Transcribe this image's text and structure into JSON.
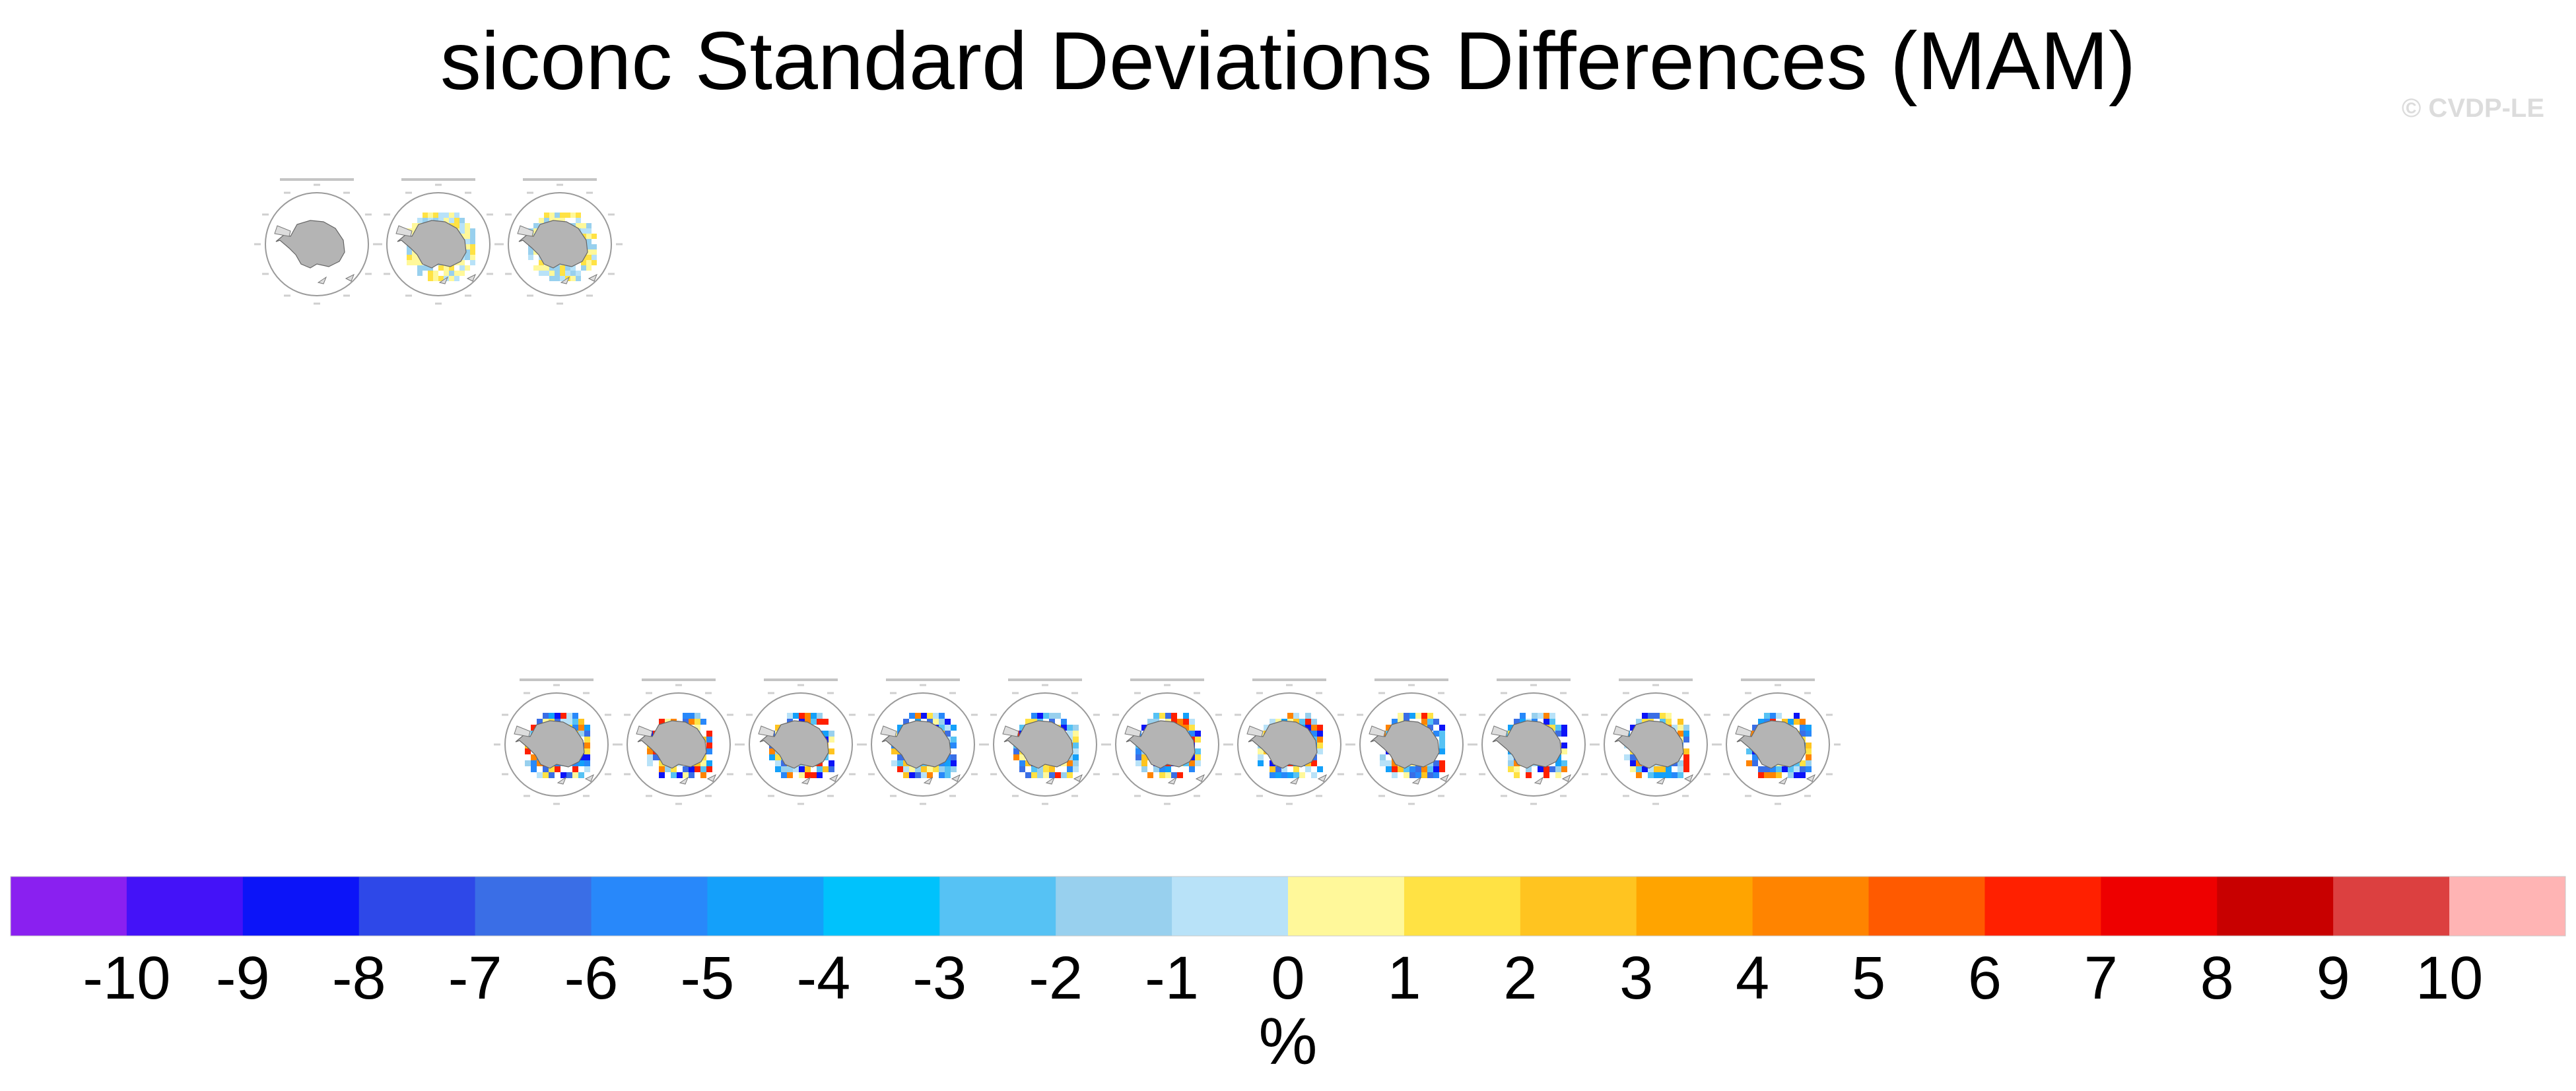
{
  "title": "siconc Standard Deviations Differences (MAM)",
  "watermark": "© CVDP-LE",
  "colors": {
    "land": "#b4b4b4",
    "ocean": "#ffffff",
    "circle": "#9a9a9a"
  },
  "panels_top": [
    {
      "fill": "none"
    },
    {
      "fill": "light-yellow"
    },
    {
      "fill": "light-yellow"
    }
  ],
  "panels_bottom": [
    {
      "fill": "mixed"
    },
    {
      "fill": "mixed"
    },
    {
      "fill": "mixed"
    },
    {
      "fill": "mixed"
    },
    {
      "fill": "mixed"
    },
    {
      "fill": "mixed"
    },
    {
      "fill": "mixed"
    },
    {
      "fill": "mixed"
    },
    {
      "fill": "mixed"
    },
    {
      "fill": "mixed"
    },
    {
      "fill": "mixed"
    }
  ],
  "chart_data": {
    "type": "heatmap",
    "title": "siconc Standard Deviations Differences (MAM)",
    "colorbar": {
      "unit": "%",
      "ticks": [
        "-10",
        "-9",
        "-8",
        "-7",
        "-6",
        "-5",
        "-4",
        "-3",
        "-2",
        "-1",
        "0",
        "1",
        "2",
        "3",
        "4",
        "5",
        "6",
        "7",
        "8",
        "9",
        "10"
      ],
      "colors": [
        "#8a20f0",
        "#4412f8",
        "#0c14f8",
        "#2e48e8",
        "#3a6ee6",
        "#2888fa",
        "#14a0fa",
        "#00c2fc",
        "#56c2f4",
        "#98d0ee",
        "#b8e2f8",
        "#fff89a",
        "#ffe244",
        "#ffc420",
        "#ffa400",
        "#ff8400",
        "#ff5a00",
        "#ff2000",
        "#ee0000",
        "#c80000",
        "#dc4040",
        "#ffb4b4"
      ]
    }
  }
}
